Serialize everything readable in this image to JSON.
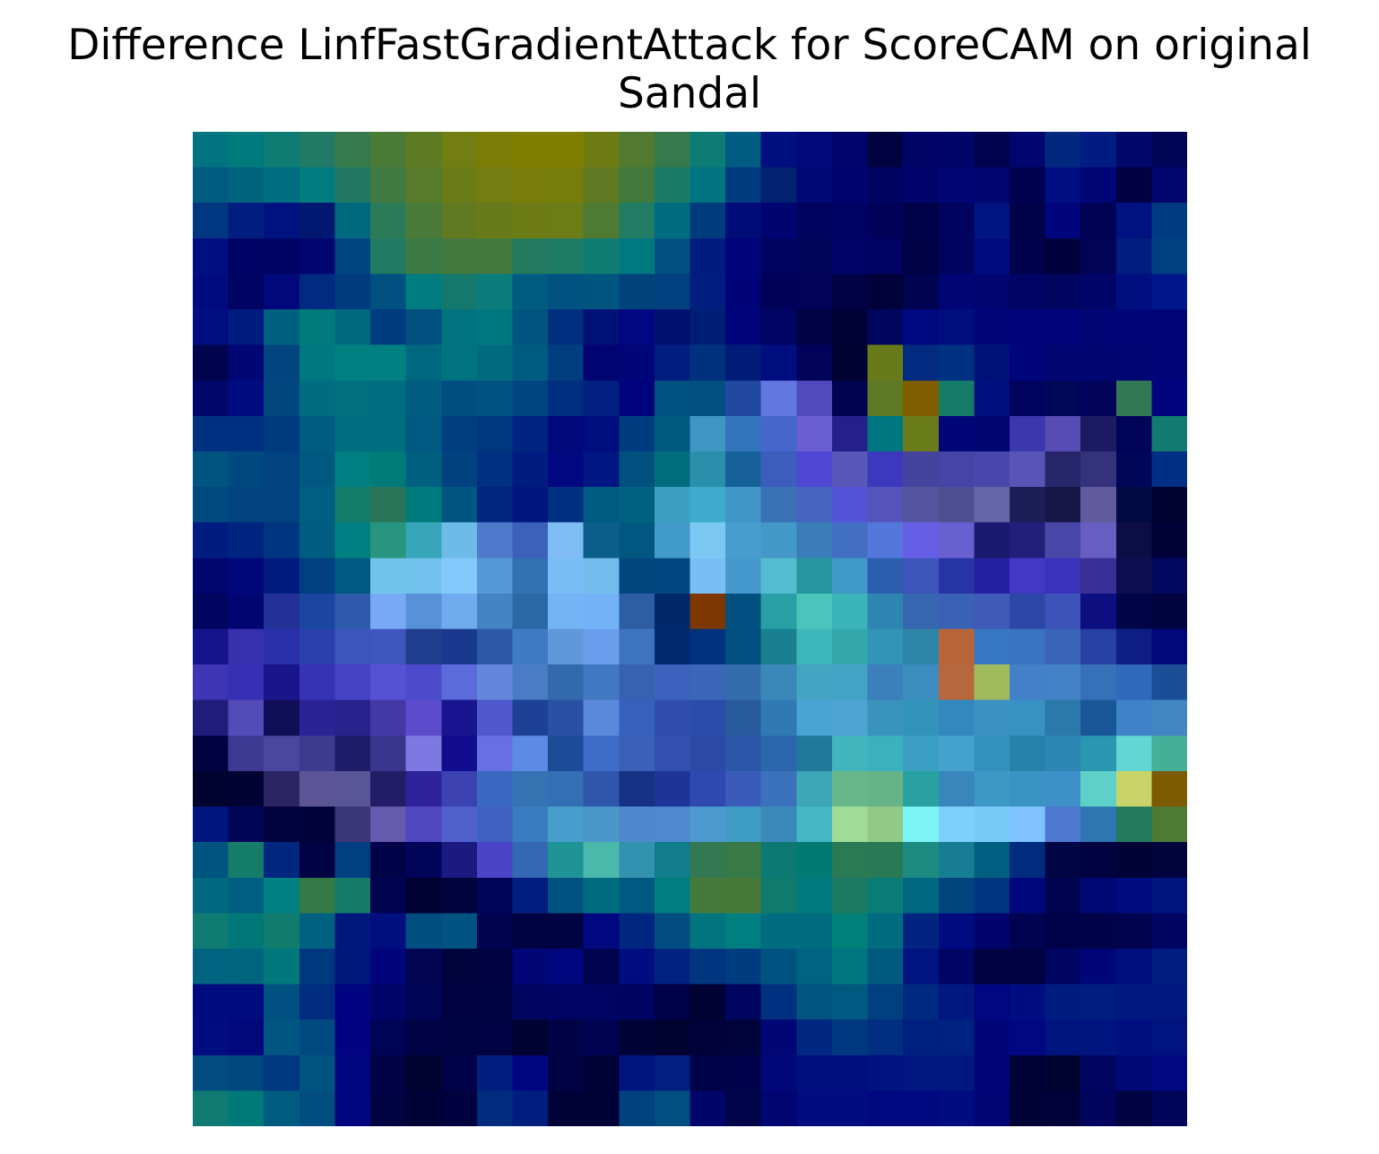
{
  "chart_data": {
    "type": "heatmap",
    "title": "Difference LinfFastGradientAttack for ScoreCAM on original Sandal",
    "title_lines": [
      "Difference LinfFastGradientAttack for ScoreCAM on original",
      "Sandal"
    ],
    "axes": "off",
    "grid": false,
    "rows": 28,
    "cols": 28,
    "cells": [
      [
        "#007480",
        "#007B7D",
        "#0F7C74",
        "#217A63",
        "#367A4C",
        "#4B7A37",
        "#5E7B24",
        "#727D12",
        "#7A7C06",
        "#807E00",
        "#807E00",
        "#6E7B14",
        "#527A30",
        "#36794C",
        "#0D7C75",
        "#005C80",
        "#000F80",
        "#00087A",
        "#00056B",
        "#000340",
        "#000566",
        "#000569",
        "#00044F",
        "#000570",
        "#00287F",
        "#001B82",
        "#000869",
        "#000457"
      ],
      [
        "#005B80",
        "#00637E",
        "#006E80",
        "#007C7E",
        "#227962",
        "#407A41",
        "#577A2C",
        "#6B7B18",
        "#737D10",
        "#787D09",
        "#777D0A",
        "#617A22",
        "#427A3E",
        "#1A7C67",
        "#007480",
        "#003B80",
        "#002270",
        "#000877",
        "#000471",
        "#000461",
        "#00046A",
        "#000674",
        "#000671",
        "#000251",
        "#000F81",
        "#000575",
        "#000144",
        "#00066B"
      ],
      [
        "#003780",
        "#001E80",
        "#001180",
        "#001870",
        "#006980",
        "#2B7B58",
        "#4A7A38",
        "#617A22",
        "#697A1A",
        "#6D7B16",
        "#6C7C16",
        "#4F7A33",
        "#207C62",
        "#006C80",
        "#003B7D",
        "#000D78",
        "#000471",
        "#00035E",
        "#000263",
        "#00025A",
        "#000248",
        "#00045E",
        "#001482",
        "#000347",
        "#00057B",
        "#000354",
        "#001180",
        "#003A80"
      ],
      [
        "#000F80",
        "#000366",
        "#000363",
        "#000570",
        "#004580",
        "#217A62",
        "#3B7A45",
        "#437A3F",
        "#447A3E",
        "#237A5F",
        "#1E7C65",
        "#0F7C74",
        "#007980",
        "#005080",
        "#001C80",
        "#00057B",
        "#00025F",
        "#00035A",
        "#000467",
        "#000364",
        "#000246",
        "#00035E",
        "#000B80",
        "#00024C",
        "#00023E",
        "#000356",
        "#001E80",
        "#004080"
      ],
      [
        "#000B80",
        "#000361",
        "#00087C",
        "#002B80",
        "#003B80",
        "#005080",
        "#007B80",
        "#14786C",
        "#0A7C79",
        "#005B80",
        "#005280",
        "#005580",
        "#00437A",
        "#004080",
        "#001E80",
        "#000378",
        "#000259",
        "#000358",
        "#000244",
        "#000239",
        "#000350",
        "#000475",
        "#000571",
        "#000464",
        "#00065F",
        "#000668",
        "#000F80",
        "#00168B"
      ],
      [
        "#000E80",
        "#001C80",
        "#006080",
        "#007B7C",
        "#006980",
        "#003C80",
        "#005080",
        "#007380",
        "#007880",
        "#005580",
        "#002F80",
        "#001178",
        "#000780",
        "#001071",
        "#001E73",
        "#000379",
        "#000464",
        "#000246",
        "#000137",
        "#00065E",
        "#000A80",
        "#000E80",
        "#000679",
        "#00057B",
        "#00057B",
        "#000675",
        "#00067A",
        "#000678"
      ],
      [
        "#00044F",
        "#000775",
        "#004480",
        "#007880",
        "#007F80",
        "#008080",
        "#006780",
        "#007380",
        "#006B80",
        "#005B80",
        "#003E80",
        "#000573",
        "#000578",
        "#001E80",
        "#00317F",
        "#001C78",
        "#000E80",
        "#000359",
        "#000233",
        "#697A1A",
        "#002B80",
        "#003080",
        "#001178",
        "#00057B",
        "#000672",
        "#000671",
        "#000674",
        "#000677"
      ],
      [
        "#00066A",
        "#000C80",
        "#004780",
        "#006C80",
        "#006F80",
        "#006D80",
        "#005D80",
        "#004D80",
        "#005380",
        "#004480",
        "#002F80",
        "#001F80",
        "#00057E",
        "#005280",
        "#004F80",
        "#2149A0",
        "#6277E0",
        "#5249BC",
        "#00034F",
        "#5E7A24",
        "#805E00",
        "#167C69",
        "#000F80",
        "#00035C",
        "#000858",
        "#000359",
        "#327854",
        "#00057E"
      ],
      [
        "#003080",
        "#003080",
        "#003B80",
        "#005C80",
        "#006E80",
        "#006D80",
        "#005980",
        "#003E80",
        "#003880",
        "#002580",
        "#00087C",
        "#000E80",
        "#003C80",
        "#005A80",
        "#4096C3",
        "#3375BB",
        "#4567CB",
        "#6A5ED4",
        "#251F8C",
        "#007780",
        "#6A7B1A",
        "#000678",
        "#00066F",
        "#3B37AD",
        "#574CB4",
        "#1C1A60",
        "#000459",
        "#127A71"
      ],
      [
        "#005480",
        "#004980",
        "#004380",
        "#005780",
        "#007F80",
        "#007C78",
        "#006080",
        "#004280",
        "#003180",
        "#001C80",
        "#000880",
        "#001783",
        "#005080",
        "#006E7F",
        "#2A8FAA",
        "#17619A",
        "#3C5DBC",
        "#5048D4",
        "#5758B8",
        "#3D39BD",
        "#44449F",
        "#4645A5",
        "#4A47AC",
        "#5955B7",
        "#27266B",
        "#33327B",
        "#000658",
        "#003085"
      ],
      [
        "#004A80",
        "#004380",
        "#004380",
        "#005E80",
        "#157C6A",
        "#2A7559",
        "#007B7D",
        "#005480",
        "#002680",
        "#001580",
        "#002F80",
        "#005B80",
        "#006280",
        "#3BA0C1",
        "#3FABCC",
        "#4195C8",
        "#3A71B7",
        "#4765C0",
        "#5454D8",
        "#5454BB",
        "#54549F",
        "#504E92",
        "#6564A8",
        "#1D1D57",
        "#17174A",
        "#615B9E",
        "#000A43",
        "#000230"
      ],
      [
        "#001C80",
        "#002580",
        "#003680",
        "#005C80",
        "#008080",
        "#27957F",
        "#37A6BA",
        "#6DBCE8",
        "#4F79CA",
        "#3B61BB",
        "#7FBDF4",
        "#0C5E8A",
        "#005880",
        "#4299CC",
        "#7BC9F2",
        "#489CCF",
        "#4398C8",
        "#3A7DB8",
        "#426FC2",
        "#5477DE",
        "#665EE4",
        "#6860D0",
        "#1A1A70",
        "#211F7A",
        "#4948AA",
        "#665EC0",
        "#0D0D45",
        "#000237"
      ],
      [
        "#00066D",
        "#00077A",
        "#001C80",
        "#003F80",
        "#005980",
        "#71C5EC",
        "#72C3EE",
        "#83C8FA",
        "#5498D8",
        "#3171B1",
        "#79BDF6",
        "#72BBED",
        "#004780",
        "#004680",
        "#78BFF5",
        "#4699CE",
        "#54BCD1",
        "#25959F",
        "#4098C8",
        "#2C5EAE",
        "#3D55BB",
        "#2734A6",
        "#2321A1",
        "#4238C5",
        "#3A32BB",
        "#3A2F97",
        "#0E0D52",
        "#000860"
      ],
      [
        "#00065F",
        "#000671",
        "#223098",
        "#1B46A0",
        "#2D5AAB",
        "#78A9F4",
        "#5991D8",
        "#70ABEF",
        "#4484C4",
        "#2A68A6",
        "#73B5F4",
        "#73B2F7",
        "#2D5EA4",
        "#00286B",
        "#7F3700",
        "#005180",
        "#289FA4",
        "#4BC4BB",
        "#3BB4B7",
        "#2E85B2",
        "#3667B0",
        "#3961B5",
        "#405AB8",
        "#2D47A7",
        "#3D53B9",
        "#0D0E80",
        "#000548",
        "#00043F"
      ],
      [
        "#15138A",
        "#3831AE",
        "#2A2FAA",
        "#2B40AE",
        "#3C54BB",
        "#3F56BF",
        "#1F3D8D",
        "#18398D",
        "#2D58A6",
        "#3F7BC2",
        "#6097DA",
        "#6A9EEC",
        "#3E73BE",
        "#002A70",
        "#01327F",
        "#004F7F",
        "#188090",
        "#3EB7BC",
        "#32A8AB",
        "#3294B6",
        "#2F85A8",
        "#B9653B",
        "#3778C3",
        "#3A73C0",
        "#3963B5",
        "#2641A3",
        "#0F1E85",
        "#00087C"
      ],
      [
        "#3D35B4",
        "#3530B4",
        "#19168C",
        "#3633B4",
        "#4644C4",
        "#5652D4",
        "#4B4BCB",
        "#5C6BDB",
        "#6586DD",
        "#4A7CC5",
        "#3369AD",
        "#4277C2",
        "#3762B2",
        "#3B62BC",
        "#3C67B8",
        "#336DAD",
        "#3988B9",
        "#45A4C1",
        "#44A3C4",
        "#3B80BC",
        "#3A8DBD",
        "#B7663E",
        "#A0BA5C",
        "#4480C8",
        "#4482C8",
        "#3670B9",
        "#3068BB",
        "#1B4E96"
      ],
      [
        "#201C7A",
        "#534CB8",
        "#110E58",
        "#2A2295",
        "#29228C",
        "#4338A6",
        "#5C4CCB",
        "#191590",
        "#4F58CD",
        "#1C4197",
        "#2851A4",
        "#5A88DA",
        "#3560BB",
        "#2F4EAB",
        "#2B4CA8",
        "#285A9E",
        "#2F7AB5",
        "#4AA3D4",
        "#4DA4D2",
        "#3993BD",
        "#3393BB",
        "#3388BE",
        "#3C91C4",
        "#3990C3",
        "#2B79AB",
        "#1A5799",
        "#3F82C7",
        "#4286C4"
      ],
      [
        "#000340",
        "#3E3A93",
        "#4A479E",
        "#3E3A8E",
        "#1E1C68",
        "#3A368E",
        "#7D78E2",
        "#120D8E",
        "#6670E4",
        "#5D8AE4",
        "#1C4C98",
        "#3D6DC7",
        "#3A61B8",
        "#3251AE",
        "#2A4AA5",
        "#2C56A8",
        "#2C66AC",
        "#20799B",
        "#40B6BC",
        "#3AB1BC",
        "#3BA0C4",
        "#45A2CC",
        "#3490BC",
        "#2782AB",
        "#2E86B4",
        "#2B96B0",
        "#61D6D3",
        "#47AE98"
      ],
      [
        "#00032E",
        "#000334",
        "#2B2663",
        "#5B5595",
        "#5A5596",
        "#221D66",
        "#2D229A",
        "#3C42B2",
        "#3A68C0",
        "#3573B3",
        "#336FB4",
        "#3056AC",
        "#163285",
        "#1E3597",
        "#2E49B0",
        "#3B5BBA",
        "#3C72BB",
        "#3DA6B8",
        "#68B68A",
        "#66B387",
        "#29A1A1",
        "#3986BD",
        "#3D99C3",
        "#3A93C4",
        "#3E91C8",
        "#5DD0C8",
        "#C8D46A",
        "#7D5B00"
      ],
      [
        "#001480",
        "#000557",
        "#00033E",
        "#00033A",
        "#3A3678",
        "#655AAE",
        "#5047C0",
        "#5060CD",
        "#3F62C2",
        "#397CC0",
        "#489DCD",
        "#4998C9",
        "#5088D0",
        "#5089D0",
        "#4D9AD0",
        "#3F9CC4",
        "#3B89B8",
        "#44B7C5",
        "#A0DC98",
        "#91CA86",
        "#7CF4F4",
        "#7DD0FB",
        "#79CBF7",
        "#80C3FF",
        "#4E78D0",
        "#2E76B1",
        "#227B5C",
        "#4E7A33"
      ],
      [
        "#005580",
        "#167C6A",
        "#002880",
        "#000343",
        "#004080",
        "#000348",
        "#000559",
        "#1B1A80",
        "#4945C6",
        "#3568B3",
        "#1E9496",
        "#4AB9AC",
        "#3292B0",
        "#107C8C",
        "#327850",
        "#387A46",
        "#0C7A73",
        "#007A73",
        "#2A7A55",
        "#2A7956",
        "#1C8C83",
        "#177D95",
        "#005F80",
        "#002C80",
        "#000544",
        "#00033F",
        "#000336",
        "#00033C"
      ],
      [
        "#006880",
        "#005E80",
        "#008080",
        "#357946",
        "#167A69",
        "#000350",
        "#000332",
        "#00033E",
        "#00055A",
        "#001E80",
        "#005380",
        "#006C80",
        "#005980",
        "#007E7F",
        "#457A3A",
        "#477A38",
        "#117A6F",
        "#007A7C",
        "#1D7A62",
        "#0A7C76",
        "#006880",
        "#00447D",
        "#003580",
        "#00077C",
        "#00034F",
        "#000875",
        "#000C80",
        "#001480"
      ],
      [
        "#0E7C72",
        "#007879",
        "#117C6E",
        "#006180",
        "#00177C",
        "#000E80",
        "#004D80",
        "#005280",
        "#00044F",
        "#000342",
        "#000341",
        "#000880",
        "#002680",
        "#004C80",
        "#00747F",
        "#007E80",
        "#006C80",
        "#006C80",
        "#008078",
        "#006C80",
        "#002480",
        "#000B80",
        "#00046C",
        "#000351",
        "#000249",
        "#000348",
        "#00034E",
        "#000562"
      ],
      [
        "#006480",
        "#006680",
        "#00787C",
        "#003880",
        "#00187E",
        "#00057B",
        "#000453",
        "#00033C",
        "#00033F",
        "#000675",
        "#00067D",
        "#00034E",
        "#000D80",
        "#002380",
        "#003680",
        "#003D80",
        "#005380",
        "#006380",
        "#007780",
        "#005A80",
        "#001380",
        "#000566",
        "#00033F",
        "#00033F",
        "#000562",
        "#00067A",
        "#000E80",
        "#001E80"
      ],
      [
        "#000B80",
        "#000B80",
        "#005180",
        "#002D80",
        "#000480",
        "#000569",
        "#000454",
        "#000340",
        "#000341",
        "#000560",
        "#000564",
        "#000462",
        "#000461",
        "#000247",
        "#000334",
        "#000560",
        "#003080",
        "#005680",
        "#005980",
        "#004080",
        "#002980",
        "#001880",
        "#000780",
        "#000D80",
        "#001C80",
        "#001D80",
        "#001880",
        "#001880"
      ],
      [
        "#000D80",
        "#00087C",
        "#005680",
        "#004A80",
        "#000480",
        "#000454",
        "#000447",
        "#000342",
        "#000343",
        "#000331",
        "#000346",
        "#000351",
        "#000337",
        "#00022F",
        "#00033A",
        "#00033C",
        "#000675",
        "#002880",
        "#003880",
        "#002E80",
        "#002080",
        "#002280",
        "#00067A",
        "#000780",
        "#001480",
        "#001480",
        "#000F80",
        "#001380"
      ],
      [
        "#004C80",
        "#004880",
        "#003880",
        "#005580",
        "#000680",
        "#000246",
        "#000230",
        "#000248",
        "#001E80",
        "#000680",
        "#000344",
        "#000338",
        "#001580",
        "#001F80",
        "#000347",
        "#00034B",
        "#000778",
        "#000F80",
        "#000F80",
        "#001180",
        "#001680",
        "#001880",
        "#000578",
        "#000236",
        "#00022F",
        "#000561",
        "#000878",
        "#000880"
      ],
      [
        "#0E7A71",
        "#007979",
        "#005B80",
        "#004E80",
        "#000580",
        "#000342",
        "#000237",
        "#000240",
        "#002D80",
        "#001E80",
        "#000237",
        "#000237",
        "#004280",
        "#004F80",
        "#00056A",
        "#000449",
        "#000572",
        "#000C80",
        "#000C80",
        "#000A80",
        "#000A80",
        "#000C80",
        "#000575",
        "#000237",
        "#00033A",
        "#00045C",
        "#00033F",
        "#00055A"
      ]
    ]
  }
}
